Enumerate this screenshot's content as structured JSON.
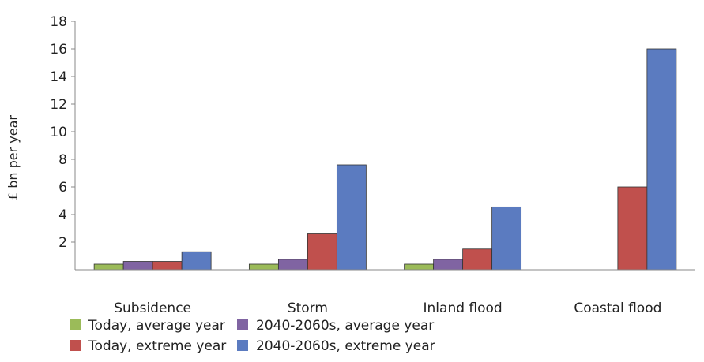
{
  "chart_data": {
    "type": "bar",
    "ylabel": "£ bn per year",
    "xlabel": "",
    "ylim": [
      0,
      18
    ],
    "yticks": [
      2,
      4,
      6,
      8,
      10,
      12,
      14,
      16,
      18
    ],
    "categories": [
      "Subsidence",
      "Storm",
      "Inland flood",
      "Coastal flood"
    ],
    "series": [
      {
        "name": "Today, average year",
        "color": "#9bbb59",
        "values": [
          0.4,
          0.4,
          0.4,
          0
        ]
      },
      {
        "name": "2040-2060s, average year",
        "color": "#8064a2",
        "values": [
          0.6,
          0.75,
          0.75,
          0
        ]
      },
      {
        "name": "Today, extreme year",
        "color": "#c0504d",
        "values": [
          0.6,
          2.6,
          1.5,
          6.0
        ]
      },
      {
        "name": "2040-2060s, extreme year",
        "color": "#5b7bc0",
        "values": [
          1.3,
          7.6,
          4.55,
          16.0
        ]
      }
    ],
    "legend_position": "bottom-left",
    "grid": false
  }
}
